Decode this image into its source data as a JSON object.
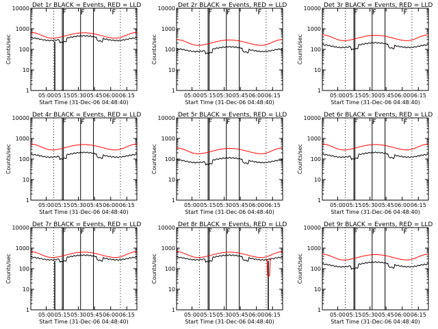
{
  "chart_data": {
    "type": "line",
    "layout": "3x3 grid of identical panels",
    "y_scale": "log",
    "ylim": [
      1,
      10000
    ],
    "y_ticks": [
      "1",
      "10",
      "100",
      "1000",
      "10000"
    ],
    "x_ticks": [
      "05:00",
      "05:15",
      "05:30",
      "05:45",
      "06:00",
      "06:15"
    ],
    "xlabel": "Start Time (31-Dec-06 04:48:40)",
    "ylabel": "Counts/sec",
    "series_legend": "BLACK = Events, RED = LLD",
    "colors": {
      "events": "#000000",
      "lld": "#ff0000"
    },
    "panels": [
      {
        "title": "Det 1r BLACK = Events, RED = LLD",
        "events_level": 240,
        "lld_level": 290,
        "dip_at": "05:08"
      },
      {
        "title": "Det 2r BLACK = Events, RED = LLD",
        "events_level": 70,
        "lld_level": 130
      },
      {
        "title": "Det 3r BLACK = Events, RED = LLD",
        "events_level": 110,
        "lld_level": 220
      },
      {
        "title": "Det 4r BLACK = Events, RED = LLD",
        "events_level": 110,
        "lld_level": 230
      },
      {
        "title": "Det 5r BLACK = Events, RED = LLD",
        "events_level": 60,
        "lld_level": 150
      },
      {
        "title": "Det 6r BLACK = Events, RED = LLD",
        "events_level": 110,
        "lld_level": 230
      },
      {
        "title": "Det 7r BLACK = Events, RED = LLD",
        "events_level": 240,
        "lld_level": 290,
        "dip_at": "05:08"
      },
      {
        "title": "Det 8r BLACK = Events, RED = LLD",
        "events_level": 240,
        "lld_level": 290,
        "dip_at": "06:11"
      },
      {
        "title": "Det 9r BLACK = Events, RED = LLD",
        "events_level": 110,
        "lld_level": 220
      }
    ]
  }
}
